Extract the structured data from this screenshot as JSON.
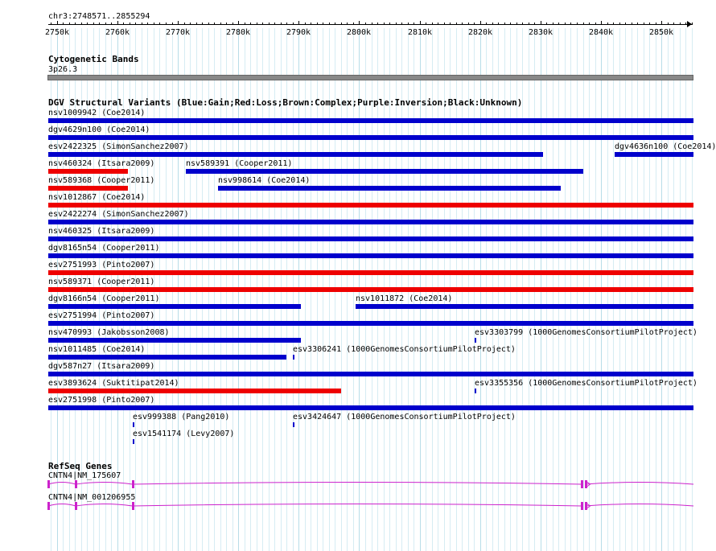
{
  "ruler": {
    "region": "chr3:2748571..2855294",
    "start": 2748571,
    "end": 2855294,
    "ticks": [
      "2750k",
      "2760k",
      "2770k",
      "2780k",
      "2790k",
      "2800k",
      "2810k",
      "2820k",
      "2830k",
      "2840k",
      "2850k"
    ]
  },
  "cytobands": {
    "title": "Cytogenetic Bands",
    "band": "3p26.3",
    "color": "#888888"
  },
  "dgv": {
    "title": "DGV Structural Variants (Blue:Gain;Red:Loss;Brown:Complex;Purple:Inversion;Black:Unknown)",
    "colors": {
      "gain": "#0000cc",
      "loss": "#ee0000"
    },
    "rows": [
      [
        {
          "label": "nsv1009942 (Coe2014)",
          "start": 2748571,
          "end": 2855294,
          "type": "gain"
        }
      ],
      [
        {
          "label": "dgv4629n100 (Coe2014)",
          "start": 2748571,
          "end": 2855294,
          "type": "gain"
        }
      ],
      [
        {
          "label": "esv2422325 (SimonSanchez2007)",
          "start": 2748571,
          "end": 2830400,
          "type": "gain"
        },
        {
          "label": "dgv4636n100 (Coe2014)",
          "start": 2842300,
          "end": 2855294,
          "type": "gain"
        }
      ],
      [
        {
          "label": "nsv460324 (Itsara2009)",
          "start": 2748571,
          "end": 2761800,
          "type": "loss"
        },
        {
          "label": "nsv589391 (Cooper2011)",
          "start": 2771300,
          "end": 2837000,
          "type": "gain"
        }
      ],
      [
        {
          "label": "nsv589368 (Cooper2011)",
          "start": 2748571,
          "end": 2761800,
          "type": "loss"
        },
        {
          "label": "nsv998614 (Coe2014)",
          "start": 2776600,
          "end": 2833400,
          "type": "gain"
        }
      ],
      [
        {
          "label": "nsv1012867 (Coe2014)",
          "start": 2748571,
          "end": 2855294,
          "type": "loss"
        }
      ],
      [
        {
          "label": "esv2422274 (SimonSanchez2007)",
          "start": 2748571,
          "end": 2855294,
          "type": "gain"
        }
      ],
      [
        {
          "label": "nsv460325 (Itsara2009)",
          "start": 2748571,
          "end": 2855294,
          "type": "gain"
        }
      ],
      [
        {
          "label": "dgv8165n54 (Cooper2011)",
          "start": 2748571,
          "end": 2855294,
          "type": "gain"
        }
      ],
      [
        {
          "label": "esv2751993 (Pinto2007)",
          "start": 2748571,
          "end": 2855294,
          "type": "loss"
        }
      ],
      [
        {
          "label": "nsv589371 (Cooper2011)",
          "start": 2748571,
          "end": 2855294,
          "type": "loss"
        }
      ],
      [
        {
          "label": "dgv8166n54 (Cooper2011)",
          "start": 2748571,
          "end": 2790400,
          "type": "gain"
        },
        {
          "label": "nsv1011872 (Coe2014)",
          "start": 2799400,
          "end": 2855294,
          "type": "gain"
        }
      ],
      [
        {
          "label": "esv2751994 (Pinto2007)",
          "start": 2748571,
          "end": 2855294,
          "type": "gain"
        }
      ],
      [
        {
          "label": "nsv470993 (Jakobsson2008)",
          "start": 2748571,
          "end": 2790400,
          "type": "gain"
        },
        {
          "label": "esv3303799 (1000GenomesConsortiumPilotProject)",
          "start": 2819100,
          "end": 2819300,
          "type": "gain"
        }
      ],
      [
        {
          "label": "nsv1011485 (Coe2014)",
          "start": 2748571,
          "end": 2788000,
          "type": "gain"
        },
        {
          "label": "esv3306241 (1000GenomesConsortiumPilotProject)",
          "start": 2789000,
          "end": 2789200,
          "type": "gain"
        }
      ],
      [
        {
          "label": "dgv587n27 (Itsara2009)",
          "start": 2748571,
          "end": 2855294,
          "type": "gain"
        }
      ],
      [
        {
          "label": "esv3893624 (Suktitipat2014)",
          "start": 2748571,
          "end": 2797000,
          "type": "loss"
        },
        {
          "label": "esv3355356 (1000GenomesConsortiumPilotProject)",
          "start": 2819100,
          "end": 2819300,
          "type": "gain"
        }
      ],
      [
        {
          "label": "esv2751998 (Pinto2007)",
          "start": 2748571,
          "end": 2855294,
          "type": "gain"
        }
      ],
      [
        {
          "label": "esv999388 (Pang2010)",
          "start": 2762600,
          "end": 2762800,
          "type": "gain"
        },
        {
          "label": "esv3424647 (1000GenomesConsortiumPilotProject)",
          "start": 2789000,
          "end": 2789200,
          "type": "gain"
        }
      ],
      [
        {
          "label": "esv1541174 (Levy2007)",
          "start": 2762600,
          "end": 2762800,
          "type": "gain"
        }
      ]
    ]
  },
  "refseq": {
    "title": "RefSeq Genes",
    "color": "#cc22cc",
    "genes": [
      {
        "label": "CNTN4|NM_175607",
        "exons": [
          2748571,
          2753100,
          2762500,
          2836800,
          2837400
        ]
      },
      {
        "label": "CNTN4|NM_001206955",
        "exons": [
          2748571,
          2753100,
          2762500,
          2836800,
          2837400
        ]
      }
    ]
  }
}
